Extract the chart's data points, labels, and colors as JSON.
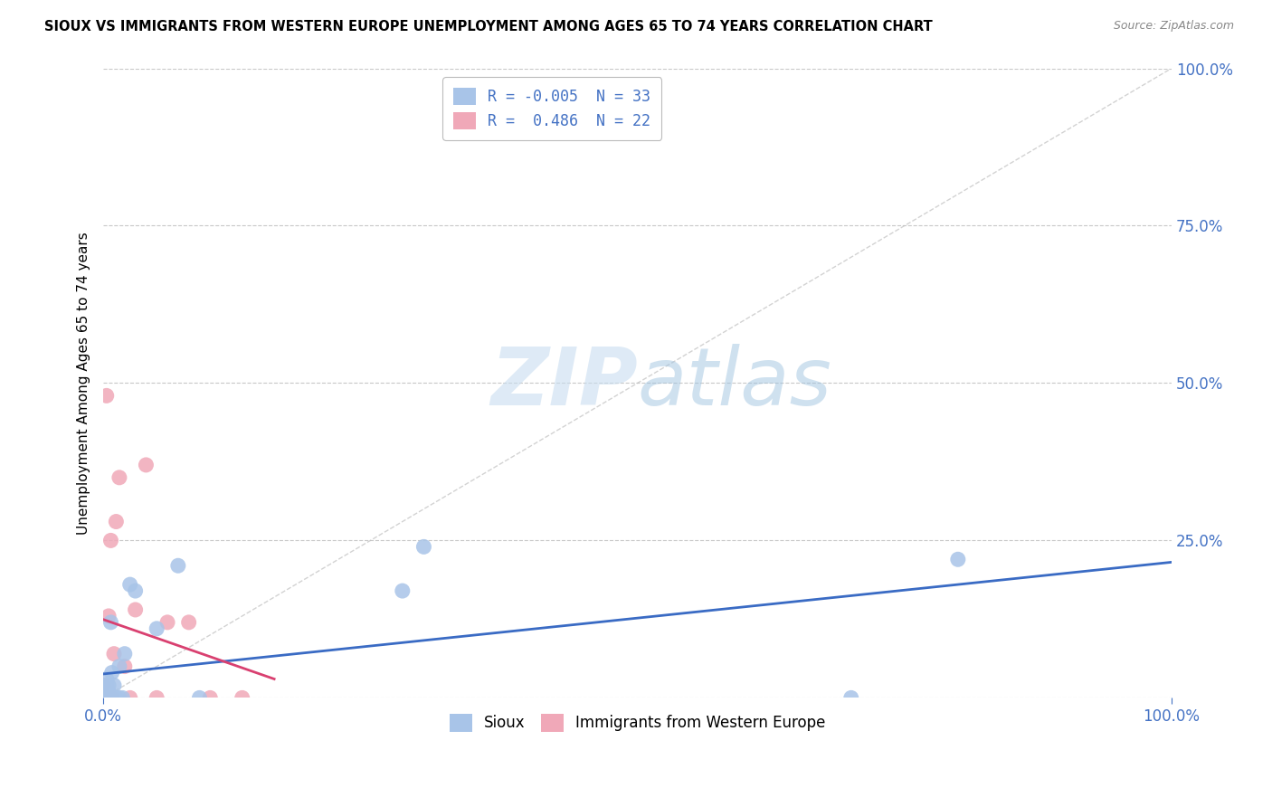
{
  "title": "SIOUX VS IMMIGRANTS FROM WESTERN EUROPE UNEMPLOYMENT AMONG AGES 65 TO 74 YEARS CORRELATION CHART",
  "source": "Source: ZipAtlas.com",
  "ylabel": "Unemployment Among Ages 65 to 74 years",
  "watermark_zip": "ZIP",
  "watermark_atlas": "atlas",
  "sioux_color": "#a8c4e8",
  "immigrants_color": "#f0a8b8",
  "sioux_line_color": "#3a6bc4",
  "immigrants_line_color": "#d94070",
  "diagonal_color": "#c0c0c0",
  "sioux_R": -0.005,
  "sioux_N": 33,
  "immigrants_R": 0.486,
  "immigrants_N": 22,
  "sioux_points_x": [
    0.0,
    0.0,
    0.001,
    0.001,
    0.002,
    0.002,
    0.003,
    0.003,
    0.003,
    0.004,
    0.004,
    0.005,
    0.005,
    0.006,
    0.007,
    0.008,
    0.009,
    0.01,
    0.01,
    0.012,
    0.015,
    0.015,
    0.018,
    0.02,
    0.025,
    0.03,
    0.05,
    0.07,
    0.09,
    0.28,
    0.3,
    0.7,
    0.8
  ],
  "sioux_points_y": [
    0.0,
    0.01,
    0.0,
    0.0,
    0.0,
    0.01,
    0.0,
    0.02,
    0.03,
    0.0,
    0.0,
    0.01,
    0.02,
    0.0,
    0.12,
    0.04,
    0.0,
    0.0,
    0.02,
    0.0,
    0.0,
    0.05,
    0.0,
    0.07,
    0.18,
    0.17,
    0.11,
    0.21,
    0.0,
    0.17,
    0.24,
    0.0,
    0.22
  ],
  "immigrants_points_x": [
    0.0,
    0.0,
    0.001,
    0.002,
    0.003,
    0.004,
    0.005,
    0.006,
    0.007,
    0.008,
    0.01,
    0.012,
    0.015,
    0.02,
    0.025,
    0.03,
    0.04,
    0.05,
    0.06,
    0.08,
    0.1,
    0.13
  ],
  "immigrants_points_y": [
    0.0,
    0.02,
    0.0,
    0.0,
    0.48,
    0.0,
    0.13,
    0.0,
    0.25,
    0.0,
    0.07,
    0.28,
    0.35,
    0.05,
    0.0,
    0.14,
    0.37,
    0.0,
    0.12,
    0.12,
    0.0,
    0.0
  ],
  "xlim": [
    0.0,
    1.0
  ],
  "ylim": [
    0.0,
    1.0
  ],
  "xticks": [
    0.0,
    1.0
  ],
  "xticklabels": [
    "0.0%",
    "100.0%"
  ],
  "yticks_right": [
    0.0,
    0.25,
    0.5,
    0.75,
    1.0
  ],
  "yticklabels_right": [
    "",
    "25.0%",
    "50.0%",
    "75.0%",
    "100.0%"
  ],
  "background_color": "#ffffff",
  "grid_color": "#c8c8c8",
  "tick_color": "#4472c4",
  "legend_r1_text": "R = -0.005  N = 33",
  "legend_r2_text": "R =  0.486  N = 22",
  "bottom_legend_labels": [
    "Sioux",
    "Immigrants from Western Europe"
  ]
}
